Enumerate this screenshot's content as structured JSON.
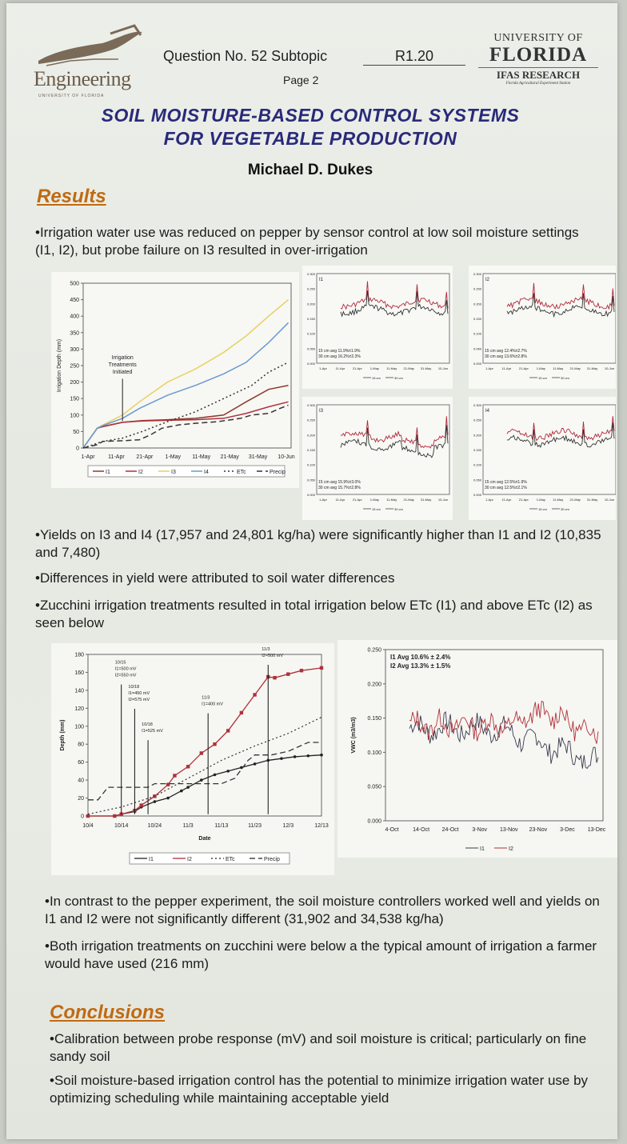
{
  "header": {
    "eng_logo_word": "Engineering",
    "eng_logo_sub": "UNIVERSITY OF FLORIDA",
    "question": "Question No. 52 Subtopic",
    "subtopic_code": "R1.20",
    "page": "Page 2",
    "uf_line1": "UNIVERSITY OF",
    "uf_line2": "FLORIDA",
    "uf_line3": "IFAS RESEARCH",
    "uf_line4": "Florida Agricultural Experiment Station"
  },
  "title_line1": "SOIL MOISTURE-BASED CONTROL SYSTEMS",
  "title_line2": "FOR VEGETABLE PRODUCTION",
  "author": "Michael D. Dukes",
  "results_heading": "Results",
  "bullet1": "•Irrigation water use was reduced on pepper by sensor control at low soil moisture settings (I1, I2), but probe failure on I3 resulted in over-irrigation",
  "bullet2": "•Yields on I3 and I4 (17,957 and 24,801 kg/ha) were significantly higher than I1 and I2 (10,835 and 7,480)",
  "bullet3": "•Differences in yield were attributed to soil water differences",
  "bullet4": "•Zucchini irrigation treatments resulted in total irrigation below ETc (I1) and above ETc (I2) as seen below",
  "bullet5": "•In contrast to the pepper experiment, the soil moisture controllers worked well and yields on I1 and I2 were not significantly different (31,902 and 34,538 kg/ha)",
  "bullet6": "•Both irrigation treatments on zucchini were below a the typical amount of irrigation a farmer would have used (216 mm)",
  "conclusions_heading": "Conclusions",
  "conclusion1": "•Calibration between probe response (mV) and soil moisture is critical; particularly on fine sandy soil",
  "conclusion2": "•Soil moisture-based irrigation control has the potential to minimize irrigation water use by optimizing scheduling while maintaining acceptable yield",
  "colors": {
    "i1": "#8b3a2a",
    "i2": "#b0303a",
    "i3": "#e8d060",
    "i4": "#6a9ad0",
    "etc": "#333333",
    "precip": "#333333",
    "title": "#2a2a7a",
    "heading": "#c06a12"
  },
  "chart_data": [
    {
      "type": "line",
      "ylabel": "Irrigation Depth (mm)",
      "ylim": [
        0,
        500
      ],
      "yticks": [
        0,
        50,
        100,
        150,
        200,
        250,
        300,
        350,
        400,
        450,
        500
      ],
      "x_tick_labels": [
        "1-Apr",
        "11-Apr",
        "21-Apr",
        "1-May",
        "11-May",
        "21-May",
        "31-May",
        "10-Jun"
      ],
      "x_range_days": [
        0,
        74
      ],
      "annotation": "Irrigation Treatments Initiated",
      "annotation_day": 14,
      "legend": [
        "I1",
        "I2",
        "I3",
        "I4",
        "ETc",
        "Precip"
      ],
      "series": [
        {
          "name": "I1",
          "x": [
            0,
            5,
            7,
            14,
            21,
            30,
            40,
            50,
            58,
            66,
            73
          ],
          "y": [
            0,
            60,
            65,
            78,
            83,
            86,
            90,
            100,
            140,
            178,
            190
          ]
        },
        {
          "name": "I2",
          "x": [
            0,
            5,
            7,
            14,
            21,
            30,
            40,
            50,
            58,
            66,
            73
          ],
          "y": [
            0,
            60,
            65,
            78,
            82,
            84,
            86,
            90,
            105,
            125,
            140
          ]
        },
        {
          "name": "I3",
          "x": [
            0,
            5,
            7,
            14,
            20,
            30,
            40,
            50,
            58,
            66,
            73
          ],
          "y": [
            0,
            60,
            70,
            100,
            140,
            200,
            240,
            290,
            340,
            400,
            450
          ]
        },
        {
          "name": "I4",
          "x": [
            0,
            5,
            7,
            14,
            20,
            30,
            40,
            50,
            58,
            66,
            73
          ],
          "y": [
            0,
            60,
            68,
            90,
            120,
            160,
            190,
            225,
            260,
            320,
            380
          ]
        },
        {
          "name": "ETc",
          "x": [
            0,
            7,
            14,
            21,
            30,
            40,
            50,
            60,
            66,
            73
          ],
          "y": [
            0,
            20,
            30,
            50,
            80,
            110,
            150,
            190,
            230,
            260
          ]
        },
        {
          "name": "Precip",
          "x": [
            0,
            5,
            7,
            14,
            20,
            24,
            28,
            34,
            40,
            48,
            56,
            60,
            66,
            70,
            73
          ],
          "y": [
            0,
            10,
            20,
            22,
            25,
            40,
            60,
            70,
            75,
            80,
            90,
            100,
            105,
            120,
            130
          ]
        }
      ]
    },
    {
      "type": "line",
      "panel": "I1",
      "avg_line1": "15 cm avg 11.9%±1.9%",
      "avg_line2": "30 cm avg 16.2%±2.3%",
      "x_tick_labels": [
        "1-Apr",
        "11-Apr",
        "21-Apr",
        "1-May",
        "11-May",
        "21-May",
        "31-May",
        "10-Jun"
      ],
      "y_tick_labels": [
        "0.000",
        "0.050",
        "0.100",
        "0.150",
        "0.200",
        "0.250",
        "0.300"
      ],
      "legend": [
        "15 cm",
        "30 cm"
      ]
    },
    {
      "type": "line",
      "panel": "I2",
      "avg_line1": "15 cm avg 12.4%±2.7%",
      "avg_line2": "30 cm avg 13.6%±2.8%",
      "x_tick_labels": [
        "1-Apr",
        "11-Apr",
        "21-Apr",
        "1-May",
        "11-May",
        "21-May",
        "31-May",
        "10-Jun"
      ],
      "y_tick_labels": [
        "0.000",
        "0.050",
        "0.100",
        "0.150",
        "0.200",
        "0.250",
        "0.300"
      ],
      "legend": [
        "15 cm",
        "30 cm"
      ]
    },
    {
      "type": "line",
      "panel": "I3",
      "avg_line1": "15 cm avg 15.9%±3.0%",
      "avg_line2": "30 cm avg 15.7%±2.8%",
      "x_tick_labels": [
        "1-Apr",
        "11-Apr",
        "21-Apr",
        "1-May",
        "11-May",
        "21-May",
        "31-May",
        "10-Jun"
      ],
      "y_tick_labels": [
        "0.000",
        "0.050",
        "0.100",
        "0.150",
        "0.200",
        "0.250",
        "0.300"
      ],
      "legend": [
        "15 cm",
        "30 cm"
      ]
    },
    {
      "type": "line",
      "panel": "I4",
      "avg_line1": "15 cm avg 12.5%±1.9%",
      "avg_line2": "30 cm avg 12.5%±2.1%",
      "x_tick_labels": [
        "1-Apr",
        "11-Apr",
        "21-Apr",
        "1-May",
        "11-May",
        "21-May",
        "31-May",
        "10-Jun"
      ],
      "y_tick_labels": [
        "0.000",
        "0.050",
        "0.100",
        "0.150",
        "0.200",
        "0.250",
        "0.300"
      ],
      "legend": [
        "15 cm",
        "30 cm"
      ]
    },
    {
      "type": "line",
      "xlabel": "Date",
      "ylabel": "Depth (mm)",
      "ylim": [
        0,
        180
      ],
      "yticks": [
        0,
        20,
        40,
        60,
        80,
        100,
        120,
        140,
        160,
        180
      ],
      "x_tick_labels": [
        "10/4",
        "10/14",
        "10/24",
        "11/3",
        "11/13",
        "11/23",
        "12/3",
        "12/13"
      ],
      "x_range_days": [
        0,
        70
      ],
      "legend": [
        "I1",
        "I2",
        "ETc",
        "Precip"
      ],
      "annotations": [
        {
          "day": 10,
          "y": 150,
          "text": [
            "10/15",
            "I1=500 mV",
            "I2=550 mV"
          ]
        },
        {
          "day": 14,
          "y": 123,
          "text": [
            "10/18",
            "I1=450 mV",
            "I2=575 mV"
          ]
        },
        {
          "day": 18,
          "y": 88,
          "text": [
            "10/18",
            "I1=525 mV"
          ]
        },
        {
          "day": 36,
          "y": 118,
          "text": [
            "11/3",
            "I1=400 mV"
          ]
        },
        {
          "day": 54,
          "y": 172,
          "text": [
            "11/3",
            "I2=500 mV"
          ]
        }
      ],
      "series": [
        {
          "name": "I1",
          "x": [
            0,
            8,
            10,
            14,
            16,
            20,
            24,
            28,
            30,
            34,
            38,
            42,
            46,
            50,
            54,
            58,
            62,
            66,
            70
          ],
          "y": [
            0,
            0,
            2,
            5,
            10,
            16,
            20,
            28,
            32,
            40,
            46,
            50,
            54,
            58,
            62,
            64,
            66,
            67,
            68
          ]
        },
        {
          "name": "I2",
          "x": [
            0,
            8,
            10,
            14,
            16,
            20,
            24,
            26,
            30,
            34,
            38,
            42,
            46,
            50,
            54,
            56,
            60,
            64,
            70
          ],
          "y": [
            0,
            0,
            2,
            6,
            12,
            22,
            35,
            45,
            55,
            70,
            80,
            95,
            115,
            135,
            155,
            154,
            158,
            162,
            165
          ]
        },
        {
          "name": "ETc",
          "x": [
            0,
            10,
            20,
            30,
            40,
            50,
            60,
            70
          ],
          "y": [
            2,
            10,
            22,
            42,
            62,
            78,
            92,
            110
          ]
        },
        {
          "name": "Precip",
          "x": [
            0,
            3,
            6,
            10,
            18,
            20,
            30,
            40,
            44,
            48,
            50,
            55,
            60,
            66,
            70
          ],
          "y": [
            18,
            18,
            32,
            32,
            32,
            36,
            36,
            36,
            42,
            62,
            68,
            68,
            72,
            82,
            82
          ]
        }
      ]
    },
    {
      "type": "line",
      "ylabel": "VWC (m3/m3)",
      "ylim": [
        0,
        0.25
      ],
      "y_tick_labels": [
        "0.000",
        "0.050",
        "0.100",
        "0.150",
        "0.200",
        "0.250"
      ],
      "x_tick_labels": [
        "4-Oct",
        "14-Oct",
        "24-Oct",
        "3-Nov",
        "13-Nov",
        "23-Nov",
        "3-Dec",
        "13-Dec"
      ],
      "avg_line1": "I1 Avg 10.6% ± 2.4%",
      "avg_line2": "I2 Avg 13.3% ± 1.5%",
      "legend": [
        "I1",
        "I2"
      ]
    }
  ]
}
